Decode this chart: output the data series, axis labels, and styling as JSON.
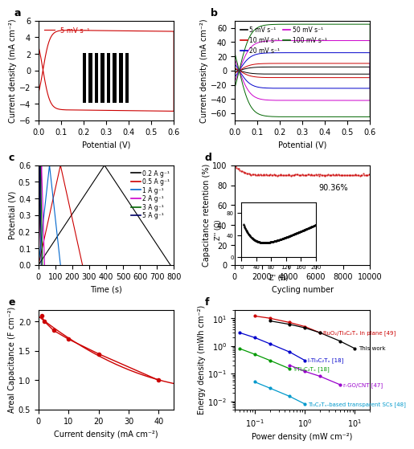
{
  "panel_a": {
    "label": "a",
    "legend": "5 mV s⁻¹",
    "color": "#cc0000",
    "xlim": [
      0,
      0.6
    ],
    "ylim": [
      -6,
      6
    ],
    "xlabel": "Potential (V)",
    "ylabel": "Current density (mA cm⁻²)",
    "yticks": [
      -6,
      -4,
      -2,
      0,
      2,
      4,
      6
    ]
  },
  "panel_b": {
    "label": "b",
    "xlim": [
      0,
      0.6
    ],
    "ylim": [
      -70,
      70
    ],
    "xlabel": "Potential (V)",
    "ylabel": "Current density (mA cm⁻²)",
    "yticks": [
      -60,
      -40,
      -20,
      0,
      20,
      40,
      60
    ],
    "curves": [
      {
        "label": "5 mV s⁻¹",
        "color": "#000000",
        "amplitude": 5
      },
      {
        "label": "10 mV s⁻¹",
        "color": "#cc0000",
        "amplitude": 10
      },
      {
        "label": "20 mV s⁻¹",
        "color": "#0000cc",
        "amplitude": 25
      },
      {
        "label": "50 mV s⁻¹",
        "color": "#cc00cc",
        "amplitude": 42
      },
      {
        "label": "100 mV s⁻¹",
        "color": "#006600",
        "amplitude": 65
      }
    ]
  },
  "panel_c": {
    "label": "c",
    "xlim": [
      0,
      800
    ],
    "ylim": [
      0,
      0.6
    ],
    "xlabel": "Time (s)",
    "ylabel": "Potential (V)",
    "xticks": [
      0,
      100,
      200,
      300,
      400,
      500,
      600,
      700,
      800
    ],
    "yticks": [
      0.0,
      0.1,
      0.2,
      0.3,
      0.4,
      0.5,
      0.6
    ],
    "curves": [
      {
        "label": "0.2 A g⁻¹",
        "color": "#000000",
        "half_period": 390
      },
      {
        "label": "0.5 A g⁻¹",
        "color": "#cc0000",
        "half_period": 130
      },
      {
        "label": "1 A g⁻¹",
        "color": "#0066cc",
        "half_period": 65
      },
      {
        "label": "2 A g⁻¹",
        "color": "#cc00cc",
        "half_period": 18
      },
      {
        "label": "3 A g⁻¹",
        "color": "#006600",
        "half_period": 12
      },
      {
        "label": "5 A g⁻¹",
        "color": "#000066",
        "half_period": 8
      }
    ]
  },
  "panel_d": {
    "label": "d",
    "xlim": [
      0,
      10000
    ],
    "ylim": [
      0,
      100
    ],
    "xlabel": "Cycling number",
    "ylabel": "Capacitance retention (%)",
    "final_retention": 90.36,
    "annotation": "90.36%",
    "main_color": "#cc0000",
    "inset": {
      "xlim": [
        0,
        200
      ],
      "ylim": [
        0,
        100
      ],
      "xlabel": "Z' (Ω)",
      "ylabel": "Z'' (Ω)",
      "color": "#000000"
    }
  },
  "panel_e": {
    "label": "e",
    "xlim": [
      0,
      45
    ],
    "ylim": [
      0.5,
      2.2
    ],
    "xlabel": "Current density (mA cm⁻²)",
    "ylabel": "Areal Capacitance (F cm⁻²)",
    "color": "#cc0000",
    "points_x": [
      1,
      2,
      5,
      10,
      20,
      40
    ],
    "points_y": [
      2.1,
      2.0,
      1.85,
      1.7,
      1.45,
      1.0
    ],
    "yticks": [
      0.5,
      1.0,
      1.5,
      2.0
    ]
  },
  "panel_f": {
    "label": "f",
    "xlabel": "Power density (mW cm⁻²)",
    "ylabel": "Energy density (mWh cm⁻²)",
    "xlim_log": [
      -1,
      1.3
    ],
    "ylim_log": [
      -2,
      1
    ],
    "curves": [
      {
        "label": "RuO₂/Ti₃C₂Tₓ in plane [49]",
        "color": "#cc0000",
        "x": [
          0.1,
          0.2,
          0.5,
          1.0,
          2.0
        ],
        "y": [
          12,
          10,
          7,
          5,
          3
        ]
      },
      {
        "label": "This work",
        "color": "#000000",
        "x": [
          0.2,
          0.5,
          1.0,
          2.0,
          5.0,
          10.0
        ],
        "y": [
          8,
          6,
          4.5,
          3,
          1.5,
          0.8
        ]
      },
      {
        "label": "l-Ti₃C₂Tₓ [18]",
        "color": "#0000cc",
        "x": [
          0.05,
          0.1,
          0.2,
          0.5,
          1.0
        ],
        "y": [
          3,
          2,
          1.2,
          0.6,
          0.3
        ]
      },
      {
        "label": "Y-Ti₃C₂Tₓ [18]",
        "color": "#009900",
        "x": [
          0.05,
          0.1,
          0.2,
          0.5
        ],
        "y": [
          0.8,
          0.5,
          0.3,
          0.15
        ]
      },
      {
        "label": "r-GO/CNT [47]",
        "color": "#9900cc",
        "x": [
          0.5,
          1.0,
          2.0,
          5.0
        ],
        "y": [
          0.2,
          0.12,
          0.08,
          0.04
        ]
      },
      {
        "label": "Ti₃C₂Tₓ-based transparent SCs [48]",
        "color": "#0099cc",
        "x": [
          0.1,
          0.2,
          0.5,
          1.0
        ],
        "y": [
          0.05,
          0.03,
          0.015,
          0.008
        ]
      }
    ]
  },
  "figure_bg": "#ffffff",
  "tick_fontsize": 7,
  "label_fontsize": 7,
  "panel_label_fontsize": 9
}
